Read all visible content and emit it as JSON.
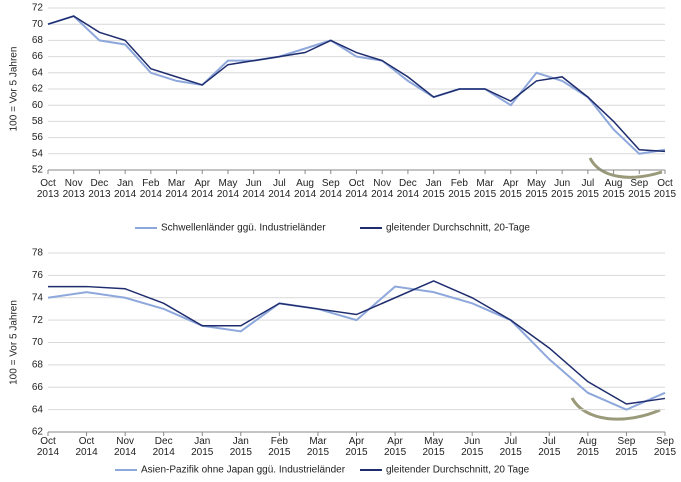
{
  "chart_data": [
    {
      "type": "line",
      "ylabel": "100 = Vor 5 Jahren",
      "categories": [
        "Oct 2013",
        "Nov 2013",
        "Dec 2013",
        "Jan 2014",
        "Feb 2014",
        "Mar 2014",
        "Apr 2014",
        "May 2014",
        "Jun 2014",
        "Jul 2014",
        "Aug 2014",
        "Sep 2014",
        "Oct 2014",
        "Nov 2014",
        "Dec 2014",
        "Jan 2015",
        "Feb 2015",
        "Mar 2015",
        "Apr 2015",
        "May 2015",
        "Jun 2015",
        "Jul 2015",
        "Aug 2015",
        "Sep 2015",
        "Oct 2015"
      ],
      "ylim": [
        52,
        72
      ],
      "yticks": [
        52,
        54,
        56,
        58,
        60,
        62,
        64,
        66,
        68,
        70,
        72
      ],
      "series": [
        {
          "name": "Schwellenländer ggü. Industrieländer",
          "color": "#8fa8dc",
          "width": 2,
          "values": [
            70,
            71,
            68,
            67.5,
            64,
            63,
            62.5,
            65.5,
            65.5,
            66,
            67,
            68,
            66,
            65.5,
            63,
            61,
            62,
            62,
            60,
            64,
            63,
            61,
            57,
            54,
            54.5
          ]
        },
        {
          "name": "gleitender Durchschnitt, 20-Tage",
          "color": "#1f2d6e",
          "width": 1.5,
          "values": [
            70,
            71,
            69,
            68,
            64.5,
            63.5,
            62.5,
            65,
            65.5,
            66,
            66.5,
            68,
            66.5,
            65.5,
            63.5,
            61,
            62,
            62,
            60.5,
            63,
            63.5,
            61,
            58,
            54.5,
            54.3
          ]
        }
      ]
    },
    {
      "type": "line",
      "ylabel": "100 = Vor 5 Jahren",
      "categories": [
        "Oct 2014",
        "Oct 2014",
        "Nov 2014",
        "Dec 2014",
        "Jan 2015",
        "Jan 2015",
        "Feb 2015",
        "Mar 2015",
        "Apr 2015",
        "Apr 2015",
        "May 2015",
        "Jun 2015",
        "Jul 2015",
        "Jul 2015",
        "Aug 2015",
        "Sep 2015",
        "Sep 2015"
      ],
      "ylim": [
        62,
        78
      ],
      "yticks": [
        62,
        64,
        66,
        68,
        70,
        72,
        74,
        76,
        78
      ],
      "series": [
        {
          "name": "Asien-Pazifik ohne Japan ggü. Industrieländer",
          "color": "#8fa8dc",
          "width": 2,
          "values": [
            74,
            74.5,
            74,
            73,
            71.5,
            71,
            73.5,
            73,
            72,
            75,
            74.5,
            73.5,
            72,
            68.5,
            65.5,
            64,
            65.5
          ]
        },
        {
          "name": "gleitender Durchschnitt, 20 Tage",
          "color": "#1f2d6e",
          "width": 1.5,
          "values": [
            75,
            75,
            74.8,
            73.5,
            71.5,
            71.5,
            73.5,
            73,
            72.5,
            74,
            75.5,
            74,
            72,
            69.5,
            66.5,
            64.5,
            65
          ]
        }
      ]
    }
  ]
}
